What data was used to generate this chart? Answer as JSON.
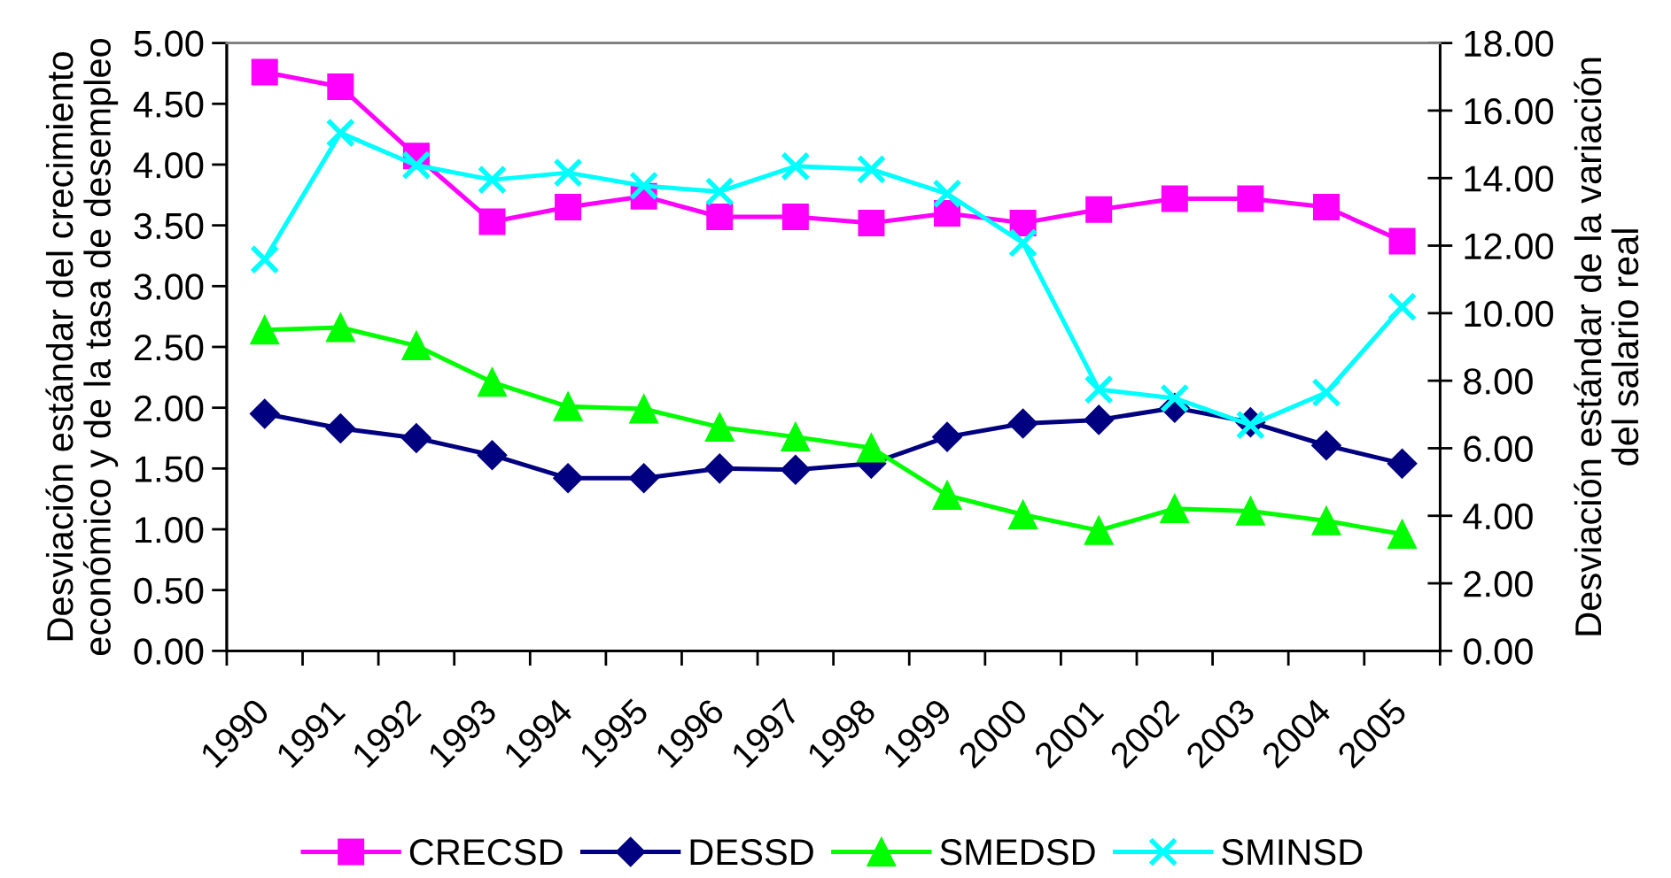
{
  "chart_data": {
    "type": "line",
    "categories": [
      "1990",
      "1991",
      "1992",
      "1993",
      "1994",
      "1995",
      "1996",
      "1997",
      "1998",
      "1999",
      "2000",
      "2001",
      "2002",
      "2003",
      "2004",
      "2005"
    ],
    "ylabel": "Desviación estándar del crecimiento\neconómico y de la tasa de desempleo",
    "y2label": "Desviación estándar de la variación\ndel salario real",
    "ylim": [
      0,
      5
    ],
    "yticks": [
      {
        "value": 0,
        "label": "0.00"
      },
      {
        "value": 0.5,
        "label": "0.50"
      },
      {
        "value": 1,
        "label": "1.00"
      },
      {
        "value": 1.5,
        "label": "1.50"
      },
      {
        "value": 2,
        "label": "2.00"
      },
      {
        "value": 2.5,
        "label": "2.50"
      },
      {
        "value": 3,
        "label": "3.00"
      },
      {
        "value": 3.5,
        "label": "3.50"
      },
      {
        "value": 4,
        "label": "4.00"
      },
      {
        "value": 4.5,
        "label": "4.50"
      },
      {
        "value": 5,
        "label": "5.00"
      }
    ],
    "y2lim": [
      0,
      18
    ],
    "y2ticks": [
      {
        "value": 0,
        "label": "0.00"
      },
      {
        "value": 2,
        "label": "2.00"
      },
      {
        "value": 4,
        "label": "4.00"
      },
      {
        "value": 6,
        "label": "6.00"
      },
      {
        "value": 8,
        "label": "8.00"
      },
      {
        "value": 10,
        "label": "10.00"
      },
      {
        "value": 12,
        "label": "12.00"
      },
      {
        "value": 14,
        "label": "14.00"
      },
      {
        "value": 16,
        "label": "16.00"
      },
      {
        "value": 18,
        "label": "18.00"
      }
    ],
    "legend": "bottom",
    "series": [
      {
        "name": "CRECSD",
        "color": "#ff00ff",
        "marker": "square",
        "values": [
          4.76,
          4.64,
          4.07,
          3.53,
          3.65,
          3.74,
          3.57,
          3.57,
          3.52,
          3.6,
          3.52,
          3.63,
          3.72,
          3.72,
          3.65,
          3.37
        ]
      },
      {
        "name": "DESSD",
        "color": "#000080",
        "marker": "diamond",
        "values": [
          1.95,
          1.83,
          1.75,
          1.61,
          1.42,
          1.42,
          1.5,
          1.49,
          1.54,
          1.76,
          1.87,
          1.9,
          2.0,
          1.88,
          1.69,
          1.54
        ]
      },
      {
        "name": "SMEDSD",
        "color": "#00ff00",
        "marker": "triangle",
        "values": [
          2.64,
          2.66,
          2.51,
          2.21,
          2.01,
          1.99,
          1.84,
          1.76,
          1.67,
          1.28,
          1.12,
          0.99,
          1.17,
          1.15,
          1.07,
          0.96
        ]
      },
      {
        "name": "SMINSD",
        "color": "#00ffff",
        "marker": "cross",
        "axis": "y2",
        "values": [
          11.59,
          15.34,
          14.38,
          13.95,
          14.16,
          13.77,
          13.6,
          14.35,
          14.26,
          13.54,
          12.08,
          7.74,
          7.48,
          6.69,
          7.65,
          10.19
        ]
      }
    ]
  }
}
